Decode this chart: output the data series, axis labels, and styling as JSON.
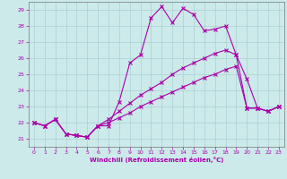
{
  "xlabel": "Windchill (Refroidissement éolien,°C)",
  "background_color": "#cceaea",
  "grid_color": "#aad0d0",
  "line_color": "#aa00aa",
  "xlim": [
    0,
    23
  ],
  "ylim": [
    21,
    29
  ],
  "yticks": [
    21,
    22,
    23,
    24,
    25,
    26,
    27,
    28,
    29
  ],
  "xticks": [
    0,
    1,
    2,
    3,
    4,
    5,
    6,
    7,
    8,
    9,
    10,
    11,
    12,
    13,
    14,
    15,
    16,
    17,
    18,
    19,
    20,
    21,
    22,
    23
  ],
  "lines": [
    {
      "y": [
        22.0,
        21.8,
        22.2,
        21.3,
        21.2,
        21.1,
        21.8,
        21.8,
        23.3,
        25.7,
        26.2,
        28.5,
        29.2,
        28.2,
        29.1,
        28.7,
        27.7,
        27.8,
        28.0,
        26.2,
        24.7,
        22.9,
        22.7,
        23.0
      ],
      "style": "-"
    },
    {
      "y": [
        22.0,
        21.8,
        22.2,
        21.3,
        21.2,
        21.1,
        21.8,
        22.2,
        22.7,
        23.2,
        23.7,
        24.1,
        24.5,
        25.0,
        25.4,
        25.7,
        26.0,
        26.3,
        26.5,
        26.2,
        22.9,
        22.9,
        22.7,
        23.0
      ],
      "style": "-"
    },
    {
      "y": [
        22.0,
        21.8,
        22.2,
        21.3,
        21.2,
        21.1,
        21.8,
        22.0,
        22.3,
        22.6,
        23.0,
        23.3,
        23.6,
        23.9,
        24.2,
        24.5,
        24.8,
        25.0,
        25.3,
        25.5,
        22.9,
        22.9,
        22.7,
        23.0
      ],
      "style": "-"
    }
  ]
}
